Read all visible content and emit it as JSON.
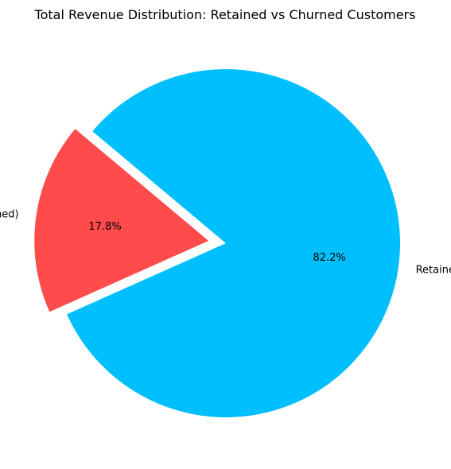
{
  "chart_data": {
    "type": "pie",
    "title": "Total Revenue Distribution: Retained vs Churned Customers",
    "slices": [
      {
        "label": "Lost Revenue (Churned)",
        "value": 17.8,
        "percent_label": "17.8%",
        "color": "#FF4B4B",
        "exploded": true
      },
      {
        "label": "Retained Revenue",
        "value": 82.2,
        "percent_label": "82.2%",
        "color": "#00BFFF",
        "exploded": false
      }
    ],
    "start_angle_deg": 140,
    "counterclockwise": true,
    "legend": "none"
  }
}
